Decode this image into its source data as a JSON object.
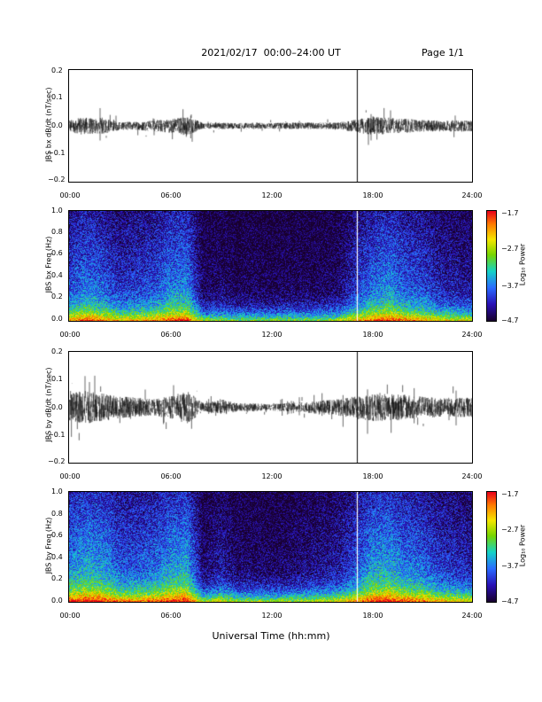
{
  "header": {
    "title": "2021/02/17  00:00–24:00 UT",
    "page": "Page 1/1"
  },
  "footer": {
    "xlabel": "Universal Time (hh:mm)"
  },
  "chart_data": [
    {
      "type": "line",
      "title": "",
      "ylabel": "JBS bx dB/dt (nT/sec)",
      "xlabel": "",
      "x_range": [
        "00:00",
        "24:00"
      ],
      "x_ticks": [
        "00:00",
        "06:00",
        "12:00",
        "18:00",
        "24:00"
      ],
      "ylim": [
        -0.2,
        0.2
      ],
      "y_ticks": [
        "0.2",
        "0.1",
        "0.0",
        "−0.1",
        "−0.2"
      ],
      "marker_time": "17:10",
      "series": [
        {
          "hours": [
            0,
            1,
            2,
            3,
            4,
            5,
            6,
            7,
            8,
            9,
            10,
            11,
            12,
            13,
            14,
            15,
            16,
            17,
            18,
            19,
            20,
            21,
            22,
            23,
            24
          ],
          "amplitude": [
            0.025,
            0.03,
            0.03,
            0.015,
            0.015,
            0.02,
            0.025,
            0.035,
            0.01,
            0.012,
            0.01,
            0.012,
            0.01,
            0.012,
            0.012,
            0.012,
            0.012,
            0.022,
            0.035,
            0.03,
            0.025,
            0.022,
            0.02,
            0.02,
            0.02
          ]
        }
      ]
    },
    {
      "type": "heatmap",
      "title": "",
      "ylabel": "JBS bx Freq (Hz)",
      "x_range": [
        "00:00",
        "24:00"
      ],
      "x_ticks": [
        "00:00",
        "06:00",
        "12:00",
        "18:00",
        "24:00"
      ],
      "ylim": [
        0,
        1.0
      ],
      "y_ticks": [
        "1.0",
        "0.8",
        "0.6",
        "0.4",
        "0.2",
        "0.0"
      ],
      "marker_time": "17:10",
      "colorbar": {
        "label": "Log₁₀ Power",
        "range": [
          -4.7,
          -1.7
        ],
        "ticks": [
          "−1.7",
          "−2.7",
          "−3.7",
          "−4.7"
        ]
      },
      "activity": [
        0.55,
        0.7,
        0.6,
        0.45,
        0.5,
        0.55,
        0.7,
        0.75,
        0.15,
        0.2,
        0.12,
        0.15,
        0.12,
        0.15,
        0.15,
        0.15,
        0.2,
        0.45,
        0.65,
        0.75,
        0.6,
        0.55,
        0.4,
        0.35,
        0.3
      ]
    },
    {
      "type": "line",
      "title": "",
      "ylabel": "JBS by dB/dt (nT/sec)",
      "xlabel": "",
      "x_range": [
        "00:00",
        "24:00"
      ],
      "x_ticks": [
        "00:00",
        "06:00",
        "12:00",
        "18:00",
        "24:00"
      ],
      "ylim": [
        -0.2,
        0.2
      ],
      "y_ticks": [
        "0.2",
        "0.1",
        "0.0",
        "−0.1",
        "−0.2"
      ],
      "marker_time": "17:10",
      "series": [
        {
          "hours": [
            0,
            1,
            2,
            3,
            4,
            5,
            6,
            7,
            8,
            9,
            10,
            11,
            12,
            13,
            14,
            15,
            16,
            17,
            18,
            19,
            20,
            21,
            22,
            23,
            24
          ],
          "amplitude": [
            0.05,
            0.06,
            0.05,
            0.04,
            0.035,
            0.03,
            0.04,
            0.06,
            0.015,
            0.03,
            0.015,
            0.015,
            0.012,
            0.015,
            0.02,
            0.025,
            0.03,
            0.04,
            0.05,
            0.05,
            0.045,
            0.04,
            0.035,
            0.035,
            0.035
          ]
        }
      ]
    },
    {
      "type": "heatmap",
      "title": "",
      "ylabel": "JBS by Freq (Hz)",
      "x_range": [
        "00:00",
        "24:00"
      ],
      "x_ticks": [
        "00:00",
        "06:00",
        "12:00",
        "18:00",
        "24:00"
      ],
      "ylim": [
        0,
        1.0
      ],
      "y_ticks": [
        "1.0",
        "0.8",
        "0.6",
        "0.4",
        "0.2",
        "0.0"
      ],
      "marker_time": "17:10",
      "colorbar": {
        "label": "Log₁₀ Power",
        "range": [
          -4.7,
          -1.7
        ],
        "ticks": [
          "−1.7",
          "−2.7",
          "−3.7",
          "−4.7"
        ]
      },
      "activity": [
        0.75,
        0.85,
        0.8,
        0.6,
        0.6,
        0.65,
        0.8,
        0.85,
        0.2,
        0.35,
        0.2,
        0.2,
        0.18,
        0.2,
        0.25,
        0.3,
        0.35,
        0.55,
        0.8,
        0.85,
        0.7,
        0.65,
        0.5,
        0.45,
        0.4
      ]
    }
  ]
}
